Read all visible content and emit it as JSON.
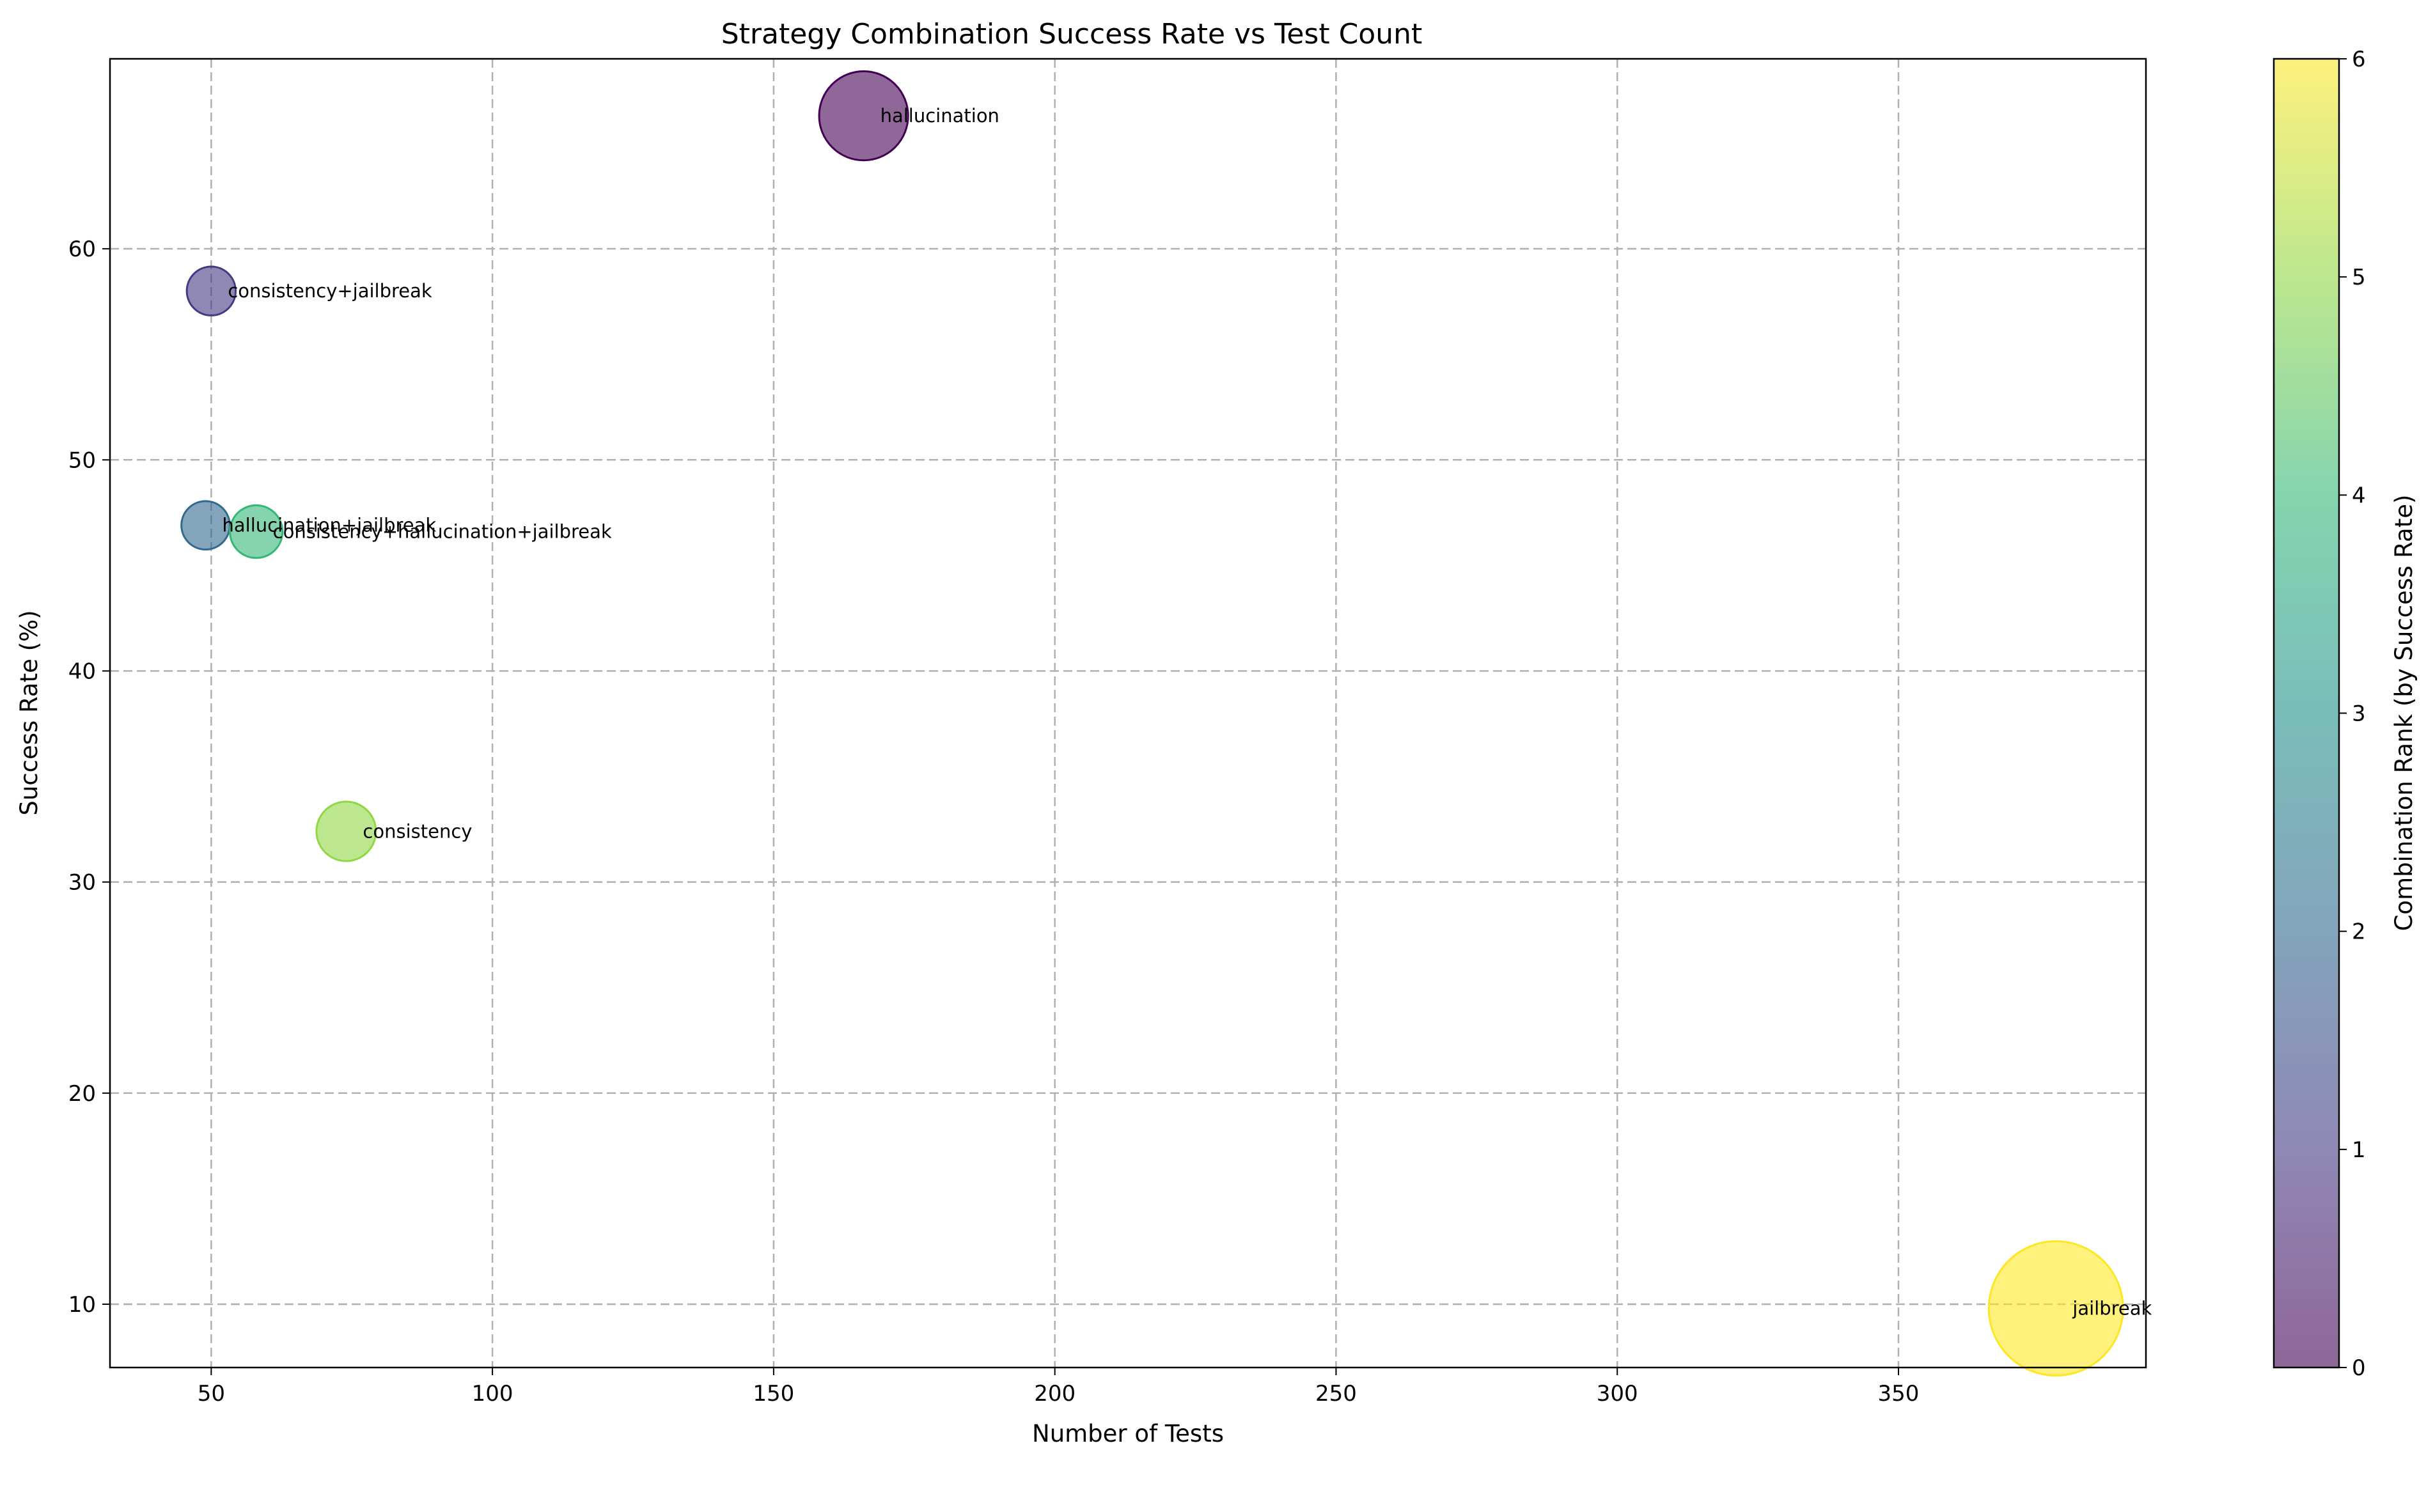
{
  "chart_data": {
    "type": "scatter",
    "title": "Strategy Combination Success Rate vs Test Count",
    "xlabel": "Number of Tests",
    "ylabel": "Success Rate (%)",
    "xlim": [
      32,
      394
    ],
    "ylim": [
      7,
      69
    ],
    "xticks": [
      50,
      100,
      150,
      200,
      250,
      300,
      350
    ],
    "yticks": [
      10,
      20,
      30,
      40,
      50,
      60
    ],
    "grid": true,
    "colormap": "viridis",
    "alpha": 0.6,
    "colorbar": {
      "label": "Combination Rank (by Success Rate)",
      "range": [
        0,
        6
      ],
      "ticks": [
        0,
        1,
        2,
        3,
        4,
        5,
        6
      ]
    },
    "points": [
      {
        "label": "hallucination",
        "x": 166,
        "y": 66.3,
        "rank": 0
      },
      {
        "label": "consistency+jailbreak",
        "x": 50,
        "y": 58.0,
        "rank": 1
      },
      {
        "label": "hallucination+jailbreak",
        "x": 49,
        "y": 46.9,
        "rank": 2
      },
      {
        "label": "consistency+hallucination+jailbreak",
        "x": 58,
        "y": 46.6,
        "rank": 4
      },
      {
        "label": "consistency",
        "x": 74,
        "y": 32.4,
        "rank": 5
      },
      {
        "label": "jailbreak",
        "x": 378,
        "y": 9.8,
        "rank": 6
      }
    ]
  }
}
